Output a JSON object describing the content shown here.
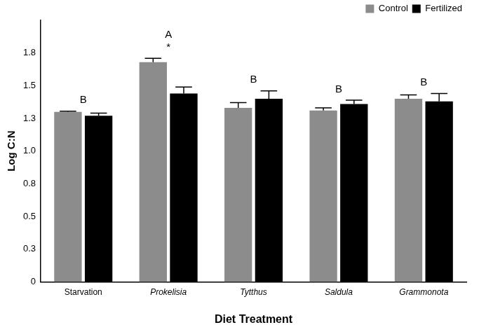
{
  "chart_data": {
    "type": "bar",
    "x_label": "Diet Treatment",
    "y_label": "Log C:N",
    "categories": [
      "Starvation",
      "Prokelisia",
      "Tytthus",
      "Saldula",
      "Grammonota"
    ],
    "series": [
      {
        "name": "Control",
        "color": "#8c8c8c",
        "values": [
          1.3,
          1.68,
          1.33,
          1.31,
          1.4
        ],
        "errors": [
          0.005,
          0.03,
          0.04,
          0.02,
          0.03
        ]
      },
      {
        "name": "Fertilized",
        "color": "#000000",
        "values": [
          1.27,
          1.44,
          1.4,
          1.36,
          1.38
        ],
        "errors": [
          0.02,
          0.05,
          0.06,
          0.03,
          0.06
        ]
      }
    ],
    "annotations": [
      {
        "category": "Starvation",
        "texts": [
          "B"
        ]
      },
      {
        "category": "Prokelisia",
        "texts": [
          "A",
          "*"
        ]
      },
      {
        "category": "Tytthus",
        "texts": [
          "B"
        ]
      },
      {
        "category": "Saldula",
        "texts": [
          "B"
        ]
      },
      {
        "category": "Grammonota",
        "texts": [
          "B"
        ]
      }
    ],
    "ylim": [
      0,
      2
    ],
    "yticks": [
      0,
      {
        "value": 0.25,
        "label": "0.3"
      },
      0.5,
      {
        "value": 0.75,
        "label": "0.8"
      },
      {
        "value": 1.0,
        "label": "1.0"
      },
      {
        "value": 1.25,
        "label": "1.3"
      },
      1.5,
      {
        "value": 1.75,
        "label": "1.8"
      }
    ],
    "grid": false,
    "legend": "top-right"
  }
}
